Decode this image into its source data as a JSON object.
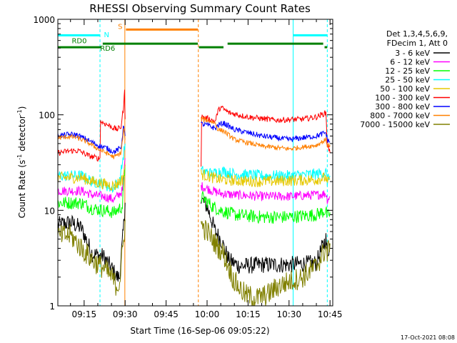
{
  "chart_data": {
    "type": "line",
    "title": "RHESSI Observing Summary Count Rates",
    "xlabel": "Start Time (16-Sep-06 09:05:22)",
    "ylabel_main": "Count Rate (s",
    "ylabel_sup1": "-1",
    "ylabel_mid": " detector",
    "ylabel_sup2": "-1",
    "ylabel_end": ")",
    "x_range_min": [
      5.37,
      106.0
    ],
    "y_range": [
      1,
      1000
    ],
    "x_ticks": [
      {
        "t": 15,
        "label": "09:15"
      },
      {
        "t": 30,
        "label": "09:30"
      },
      {
        "t": 45,
        "label": "09:45"
      },
      {
        "t": 60,
        "label": "10:00"
      },
      {
        "t": 75,
        "label": "10:15"
      },
      {
        "t": 90,
        "label": "10:30"
      },
      {
        "t": 105,
        "label": "10:45"
      }
    ],
    "y_ticks": [
      {
        "v": 1,
        "label": "1"
      },
      {
        "v": 10,
        "label": "10"
      },
      {
        "v": 100,
        "label": "100"
      },
      {
        "v": 1000,
        "label": "1000"
      }
    ],
    "legend": {
      "header": [
        "Det 1,3,4,5,6,9,",
        "FDecim 1, Att 0"
      ],
      "entries": [
        {
          "label": "3 - 6 keV",
          "color": "#000000"
        },
        {
          "label": "6 - 12 keV",
          "color": "#ff00ff"
        },
        {
          "label": "12 - 25 keV",
          "color": "#00ff00"
        },
        {
          "label": "25 - 50 keV",
          "color": "#00ffff"
        },
        {
          "label": "50 - 100 keV",
          "color": "#e6c800"
        },
        {
          "label": "100 - 300 keV",
          "color": "#ff0000"
        },
        {
          "label": "300 - 800 keV",
          "color": "#0000ff"
        },
        {
          "label": "800 - 7000 keV",
          "color": "#ff8000"
        },
        {
          "label": "7000 - 15000 keV",
          "color": "#808000"
        }
      ]
    },
    "series": [
      {
        "name": "3 - 6 keV",
        "color": "#000000",
        "noise": 0.09,
        "segments": [
          [
            [
              5.4,
              7.0
            ],
            [
              10,
              7.5
            ],
            [
              14,
              6.5
            ],
            [
              18,
              3.5
            ],
            [
              22,
              3.3
            ],
            [
              25,
              2.5
            ],
            [
              27,
              2.0
            ],
            [
              28,
              2.0
            ],
            [
              29.5,
              7.0
            ],
            [
              30,
              12
            ]
          ],
          [
            [
              57.8,
              13
            ],
            [
              60,
              11
            ],
            [
              63,
              6
            ],
            [
              65,
              5
            ],
            [
              68,
              3
            ],
            [
              72,
              2.6
            ],
            [
              80,
              2.7
            ],
            [
              90,
              2.7
            ],
            [
              100,
              2.8
            ],
            [
              102,
              4
            ],
            [
              103.5,
              5
            ],
            [
              104,
              3.5
            ],
            [
              105,
              4.5
            ]
          ]
        ]
      },
      {
        "name": "6 - 12 keV",
        "color": "#ff00ff",
        "noise": 0.05,
        "segments": [
          [
            [
              5.4,
              16
            ],
            [
              14,
              16
            ],
            [
              18,
              14.5
            ],
            [
              22,
              14.0
            ],
            [
              26,
              13
            ],
            [
              29,
              16
            ],
            [
              30,
              35
            ]
          ],
          [
            [
              57.8,
              18
            ],
            [
              62,
              16
            ],
            [
              65,
              15
            ],
            [
              70,
              14.5
            ],
            [
              80,
              14.0
            ],
            [
              90,
              14.0
            ],
            [
              100,
              14.5
            ],
            [
              103.5,
              15.0
            ],
            [
              104,
              13
            ],
            [
              105,
              14
            ]
          ]
        ]
      },
      {
        "name": "12 - 25 keV",
        "color": "#00ff00",
        "noise": 0.07,
        "segments": [
          [
            [
              5.4,
              12
            ],
            [
              14,
              12
            ],
            [
              18,
              10.5
            ],
            [
              22,
              10.0
            ],
            [
              26,
              9.5
            ],
            [
              29,
              11
            ],
            [
              30,
              30
            ]
          ],
          [
            [
              57.8,
              14
            ],
            [
              62,
              11
            ],
            [
              65,
              10
            ],
            [
              70,
              9.0
            ],
            [
              80,
              8.5
            ],
            [
              90,
              8.5
            ],
            [
              100,
              9.0
            ],
            [
              103.5,
              10.0
            ],
            [
              104,
              8.5
            ],
            [
              105,
              9.5
            ]
          ]
        ]
      },
      {
        "name": "25 - 50 keV",
        "color": "#00ffff",
        "noise": 0.06,
        "segments": [
          [
            [
              5.4,
              23
            ],
            [
              14,
              23
            ],
            [
              18,
              20
            ],
            [
              22,
              19
            ],
            [
              25,
              17
            ],
            [
              28,
              20
            ],
            [
              30,
              50
            ]
          ],
          [
            [
              57.8,
              26
            ],
            [
              62,
              24
            ],
            [
              65,
              26
            ],
            [
              70,
              24
            ],
            [
              80,
              23
            ],
            [
              90,
              23
            ],
            [
              100,
              24
            ],
            [
              103.5,
              25
            ],
            [
              104,
              20
            ],
            [
              105,
              23
            ]
          ]
        ]
      },
      {
        "name": "50 - 100 keV",
        "color": "#e6c800",
        "noise": 0.06,
        "segments": [
          [
            [
              5.4,
              22
            ],
            [
              14,
              22
            ],
            [
              18,
              20
            ],
            [
              22,
              19
            ],
            [
              26,
              18
            ],
            [
              29,
              21
            ],
            [
              30,
              30
            ]
          ],
          [
            [
              57.8,
              24
            ],
            [
              62,
              22
            ],
            [
              65,
              21
            ],
            [
              70,
              20.5
            ],
            [
              80,
              20
            ],
            [
              90,
              20.5
            ],
            [
              100,
              21
            ],
            [
              103.5,
              22
            ],
            [
              104,
              19
            ],
            [
              105,
              21
            ]
          ]
        ]
      },
      {
        "name": "100 - 300 keV",
        "color": "#ff0000",
        "noise": 0.03,
        "segments": [
          [
            [
              5.4,
              40
            ],
            [
              10,
              42
            ],
            [
              13,
              42
            ],
            [
              17,
              37
            ],
            [
              20,
              35
            ],
            [
              20.8,
              35
            ],
            [
              21,
              85
            ],
            [
              23,
              80
            ],
            [
              27,
              70
            ],
            [
              28.5,
              75
            ],
            [
              29.5,
              125
            ],
            [
              29.8,
              180
            ],
            [
              30,
              90
            ]
          ],
          [
            [
              57.8,
              30
            ],
            [
              58,
              95
            ],
            [
              61,
              90
            ],
            [
              63,
              85
            ],
            [
              64,
              110
            ],
            [
              65,
              120
            ],
            [
              68,
              105
            ],
            [
              75,
              95
            ],
            [
              85,
              88
            ],
            [
              95,
              90
            ],
            [
              100,
              95
            ],
            [
              103.5,
              105
            ],
            [
              104,
              50
            ],
            [
              105,
              40
            ]
          ]
        ]
      },
      {
        "name": "300 - 800 keV",
        "color": "#0000ff",
        "noise": 0.03,
        "segments": [
          [
            [
              5.4,
              60
            ],
            [
              9,
              62
            ],
            [
              12,
              62
            ],
            [
              16,
              55
            ],
            [
              20,
              48
            ],
            [
              23,
              45
            ],
            [
              26,
              41
            ],
            [
              28.5,
              45
            ],
            [
              29.5,
              80
            ],
            [
              30,
              60
            ]
          ],
          [
            [
              57.8,
              80
            ],
            [
              60,
              78
            ],
            [
              63,
              72
            ],
            [
              64,
              78
            ],
            [
              66,
              82
            ],
            [
              70,
              70
            ],
            [
              80,
              60
            ],
            [
              90,
              55
            ],
            [
              100,
              60
            ],
            [
              103.5,
              65
            ],
            [
              104,
              55
            ],
            [
              105,
              52
            ]
          ]
        ]
      },
      {
        "name": "800 - 7000 keV",
        "color": "#ff8000",
        "noise": 0.025,
        "segments": [
          [
            [
              5.4,
              57
            ],
            [
              9,
              59
            ],
            [
              12,
              58
            ],
            [
              16,
              52
            ],
            [
              20,
              44
            ],
            [
              23,
              40
            ],
            [
              26,
              36
            ],
            [
              28.5,
              40
            ],
            [
              29.5,
              70
            ],
            [
              30,
              55
            ]
          ],
          [
            [
              57.8,
              90
            ],
            [
              60,
              88
            ],
            [
              63,
              82
            ],
            [
              64,
              70
            ],
            [
              66,
              68
            ],
            [
              70,
              55
            ],
            [
              80,
              47
            ],
            [
              90,
              44
            ],
            [
              100,
              48
            ],
            [
              103.5,
              55
            ],
            [
              104,
              48
            ],
            [
              105,
              48
            ]
          ]
        ]
      },
      {
        "name": "7000 - 15000 keV",
        "color": "#808000",
        "noise": 0.12,
        "segments": [
          [
            [
              5.4,
              5.3
            ],
            [
              10,
              5.5
            ],
            [
              14,
              4.0
            ],
            [
              18,
              3.0
            ],
            [
              22,
              2.5
            ],
            [
              25,
              2.0
            ],
            [
              27,
              1.6
            ],
            [
              28,
              1.8
            ],
            [
              29.5,
              5
            ],
            [
              30,
              8
            ]
          ],
          [
            [
              57.8,
              7.0
            ],
            [
              60,
              6.0
            ],
            [
              63,
              4.5
            ],
            [
              66,
              3.5
            ],
            [
              70,
              1.8
            ],
            [
              74,
              1.3
            ],
            [
              78,
              1.2
            ],
            [
              82,
              1.3
            ],
            [
              86,
              1.6
            ],
            [
              90,
              1.8
            ],
            [
              95,
              2.0
            ],
            [
              100,
              2.6
            ],
            [
              103.5,
              4.0
            ],
            [
              104,
              3.5
            ],
            [
              105,
              4.5
            ]
          ]
        ]
      }
    ],
    "vertical_lines": [
      {
        "t": 20.8,
        "color": "#00ffff",
        "dashed": true
      },
      {
        "t": 29.9,
        "color": "#ff8000",
        "dashed": false
      },
      {
        "t": 56.8,
        "color": "#ff8000",
        "dashed": true
      },
      {
        "t": 91.5,
        "color": "#00ffff",
        "dashed": false
      },
      {
        "t": 104.0,
        "color": "#00ffff",
        "dashed": true
      }
    ],
    "flag_bars": [
      {
        "t0": 5.4,
        "t1": 20.8,
        "v": 680,
        "color": "#00ffff",
        "width": 3
      },
      {
        "t0": 91.5,
        "t1": 104.0,
        "v": 680,
        "color": "#00ffff",
        "width": 3
      },
      {
        "t0": 30.3,
        "t1": 56.6,
        "v": 780,
        "color": "#ff8000",
        "width": 3
      },
      {
        "t0": 5.4,
        "t1": 21.2,
        "v": 510,
        "color": "#008000",
        "width": 3
      },
      {
        "t0": 21.8,
        "t1": 56.6,
        "v": 555,
        "color": "#008000",
        "width": 3
      },
      {
        "t0": 57.0,
        "t1": 66.0,
        "v": 510,
        "color": "#008000",
        "width": 3
      },
      {
        "t0": 67.5,
        "t1": 102.5,
        "v": 555,
        "color": "#008000",
        "width": 3
      },
      {
        "t0": 103.0,
        "t1": 104.0,
        "v": 510,
        "color": "#008000",
        "width": 3
      }
    ],
    "flag_labels": [
      {
        "text": "RD0",
        "t": 13.2,
        "v": 560,
        "color": "#008000"
      },
      {
        "text": "N",
        "t": 23.2,
        "v": 650,
        "color": "#00ffff"
      },
      {
        "text": "S",
        "t": 28.2,
        "v": 790,
        "color": "#ff8000"
      },
      {
        "text": "RD6",
        "t": 23.6,
        "v": 470,
        "color": "#008000"
      }
    ],
    "timestamp": "17-Oct-2021 08:08"
  }
}
